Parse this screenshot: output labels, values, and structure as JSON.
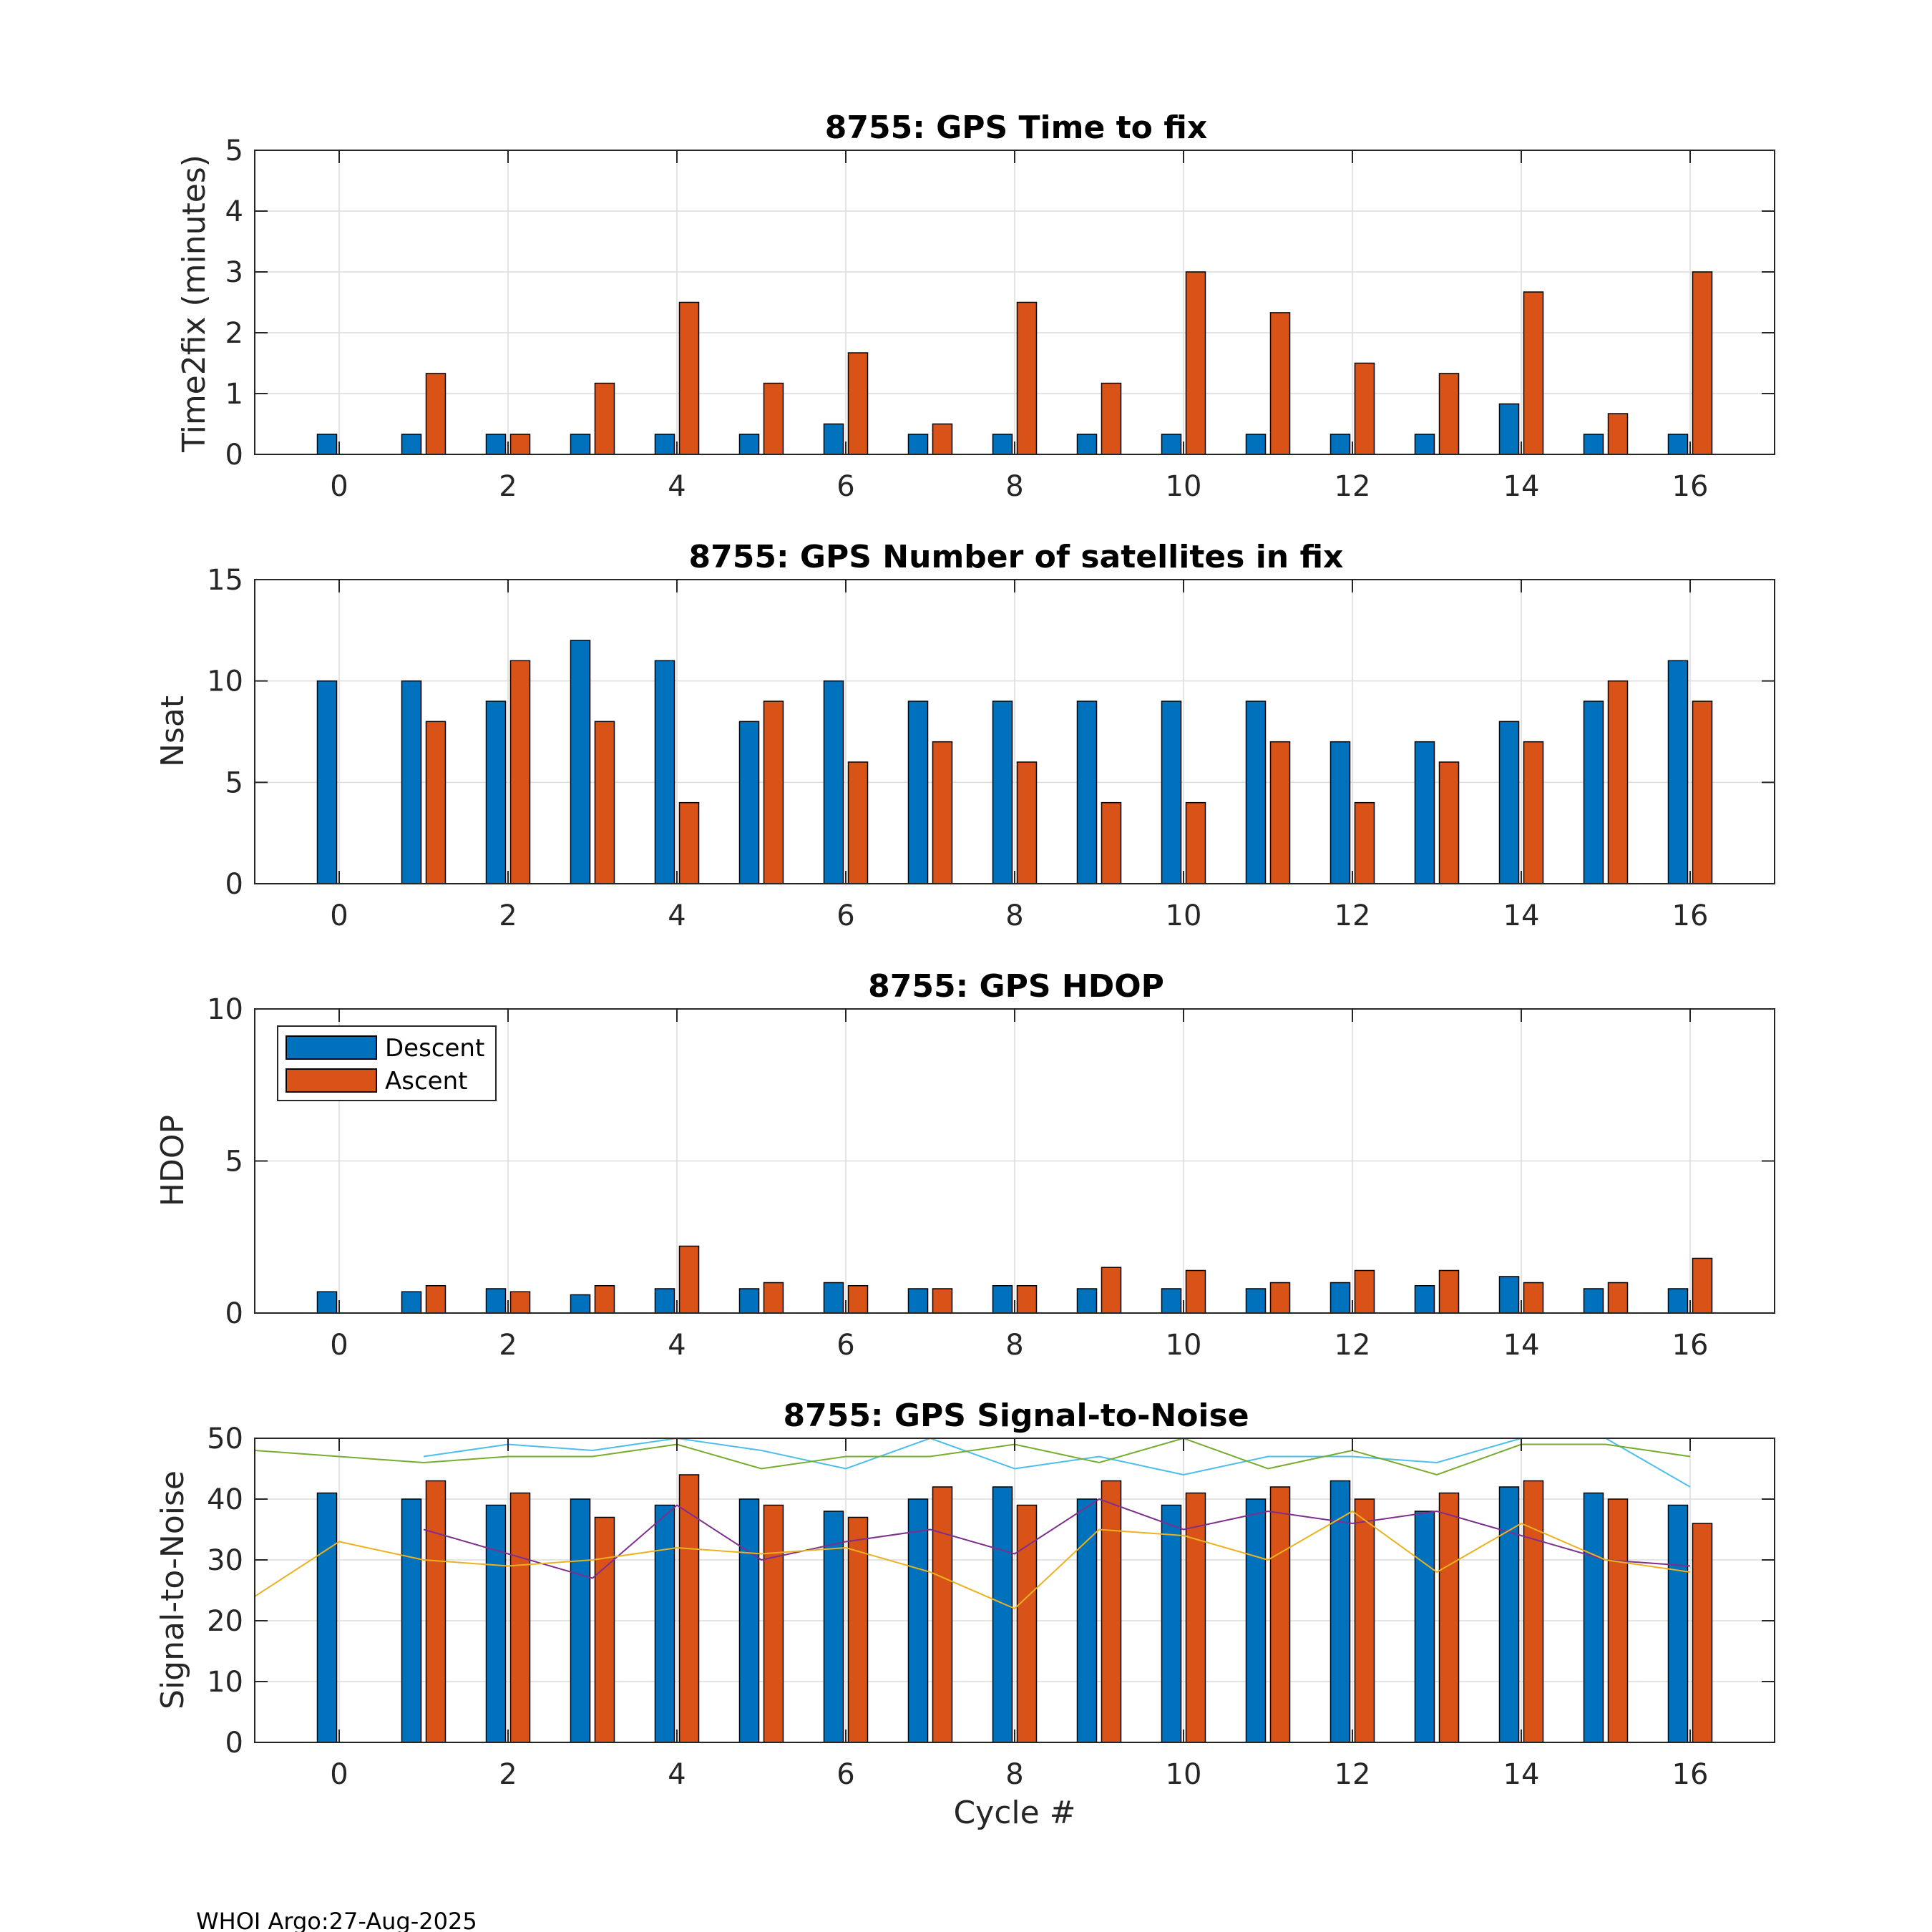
{
  "footer": "WHOI Argo:27-Aug-2025",
  "colors": {
    "descent": "#0072BD",
    "ascent": "#D95319",
    "grid": "#dcdcdc",
    "snr_lines": [
      "#4DBEEE",
      "#77AC30",
      "#7E2F8E",
      "#EDB120"
    ]
  },
  "legend": [
    "Descent",
    "Ascent"
  ],
  "chart_data": [
    {
      "id": "ttf",
      "type": "bar",
      "title": "8755: GPS Time to fix",
      "ylabel": "Time2fix (minutes)",
      "xlabel": "",
      "xlim": [
        -1,
        17
      ],
      "ylim": [
        0,
        5
      ],
      "xticks": [
        0,
        2,
        4,
        6,
        8,
        10,
        12,
        14,
        16
      ],
      "yticks": [
        0,
        1,
        2,
        3,
        4,
        5
      ],
      "grid": true,
      "categories": [
        0,
        1,
        2,
        3,
        4,
        5,
        6,
        7,
        8,
        9,
        10,
        11,
        12,
        13,
        14,
        15,
        16
      ],
      "series": [
        {
          "name": "Descent",
          "values": [
            0.33,
            0.33,
            0.33,
            0.33,
            0.33,
            0.33,
            0.5,
            0.33,
            0.33,
            0.33,
            0.33,
            0.33,
            0.33,
            0.33,
            0.83,
            0.33,
            0.33
          ]
        },
        {
          "name": "Ascent",
          "values": [
            null,
            1.33,
            0.33,
            1.17,
            2.5,
            1.17,
            1.67,
            0.5,
            2.5,
            1.17,
            3.0,
            2.33,
            1.5,
            1.33,
            2.67,
            0.67,
            3.0
          ]
        }
      ]
    },
    {
      "id": "nsat",
      "type": "bar",
      "title": "8755: GPS Number of satellites in fix",
      "ylabel": "Nsat",
      "xlabel": "",
      "xlim": [
        -1,
        17
      ],
      "ylim": [
        0,
        15
      ],
      "xticks": [
        0,
        2,
        4,
        6,
        8,
        10,
        12,
        14,
        16
      ],
      "yticks": [
        0,
        5,
        10,
        15
      ],
      "grid": true,
      "categories": [
        0,
        1,
        2,
        3,
        4,
        5,
        6,
        7,
        8,
        9,
        10,
        11,
        12,
        13,
        14,
        15,
        16
      ],
      "series": [
        {
          "name": "Descent",
          "values": [
            10,
            10,
            9,
            12,
            11,
            8,
            10,
            9,
            9,
            9,
            9,
            9,
            7,
            7,
            8,
            9,
            11
          ]
        },
        {
          "name": "Ascent",
          "values": [
            null,
            8,
            11,
            8,
            4,
            9,
            6,
            7,
            6,
            4,
            4,
            7,
            4,
            6,
            7,
            10,
            9
          ]
        }
      ]
    },
    {
      "id": "hdop",
      "type": "bar",
      "title": "8755: GPS HDOP",
      "ylabel": "HDOP",
      "xlabel": "",
      "xlim": [
        -1,
        17
      ],
      "ylim": [
        0,
        10
      ],
      "xticks": [
        0,
        2,
        4,
        6,
        8,
        10,
        12,
        14,
        16
      ],
      "yticks": [
        0,
        5,
        10
      ],
      "grid": true,
      "legend": "top-left",
      "categories": [
        0,
        1,
        2,
        3,
        4,
        5,
        6,
        7,
        8,
        9,
        10,
        11,
        12,
        13,
        14,
        15,
        16
      ],
      "series": [
        {
          "name": "Descent",
          "values": [
            0.7,
            0.7,
            0.8,
            0.6,
            0.8,
            0.8,
            1.0,
            0.8,
            0.9,
            0.8,
            0.8,
            0.8,
            1.0,
            0.9,
            1.2,
            0.8,
            0.8
          ]
        },
        {
          "name": "Ascent",
          "values": [
            null,
            0.9,
            0.7,
            0.9,
            2.2,
            1.0,
            0.9,
            0.8,
            0.9,
            1.5,
            1.4,
            1.0,
            1.4,
            1.4,
            1.0,
            1.0,
            1.8
          ]
        }
      ]
    },
    {
      "id": "snr",
      "type": "bar",
      "title": "8755: GPS Signal-to-Noise",
      "ylabel": "Signal-to-Noise",
      "xlabel": "Cycle #",
      "xlim": [
        -1,
        17
      ],
      "ylim": [
        0,
        50
      ],
      "xticks": [
        0,
        2,
        4,
        6,
        8,
        10,
        12,
        14,
        16
      ],
      "yticks": [
        0,
        10,
        20,
        30,
        40,
        50
      ],
      "grid": true,
      "categories": [
        0,
        1,
        2,
        3,
        4,
        5,
        6,
        7,
        8,
        9,
        10,
        11,
        12,
        13,
        14,
        15,
        16
      ],
      "series": [
        {
          "name": "Descent",
          "values": [
            41,
            40,
            39,
            40,
            39,
            40,
            38,
            40,
            42,
            40,
            39,
            40,
            43,
            38,
            42,
            41,
            39
          ]
        },
        {
          "name": "Ascent",
          "values": [
            null,
            43,
            41,
            37,
            44,
            39,
            37,
            42,
            39,
            43,
            41,
            42,
            40,
            41,
            43,
            40,
            36
          ]
        }
      ],
      "lines": [
        {
          "x": [
            1,
            2,
            3,
            4,
            5,
            6,
            7,
            8,
            9,
            10,
            11,
            12,
            13,
            14,
            15,
            16
          ],
          "y": [
            47,
            49,
            48,
            50,
            48,
            45,
            50,
            45,
            47,
            44,
            47,
            47,
            46,
            50,
            50,
            42
          ]
        },
        {
          "x": [
            -1,
            0,
            1,
            2,
            3,
            4,
            5,
            6,
            7,
            8,
            9,
            10,
            11,
            12,
            13,
            14,
            15,
            16
          ],
          "y": [
            48,
            47,
            46,
            47,
            47,
            49,
            45,
            47,
            47,
            49,
            46,
            50,
            45,
            48,
            44,
            49,
            49,
            47
          ]
        },
        {
          "x": [
            1,
            2,
            3,
            4,
            5,
            6,
            7,
            8,
            9,
            10,
            11,
            12,
            13,
            14,
            15,
            16
          ],
          "y": [
            35,
            31,
            27,
            39,
            30,
            33,
            35,
            31,
            40,
            35,
            38,
            36,
            38,
            34,
            30,
            29
          ]
        },
        {
          "x": [
            -1,
            0,
            1,
            2,
            3,
            4,
            5,
            6,
            7,
            8,
            9,
            10,
            11,
            12,
            13,
            14,
            15,
            16
          ],
          "y": [
            24,
            33,
            30,
            29,
            30,
            32,
            31,
            32,
            28,
            22,
            35,
            34,
            30,
            38,
            28,
            36,
            30,
            28
          ]
        }
      ]
    }
  ]
}
